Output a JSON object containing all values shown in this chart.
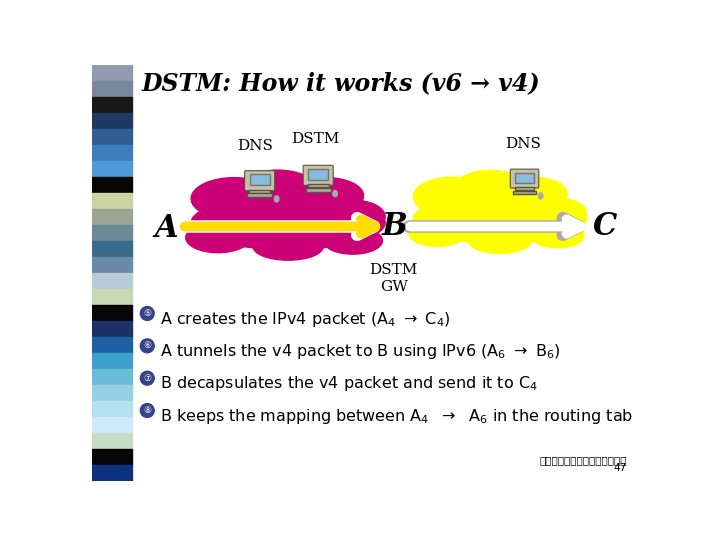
{
  "title": "DSTM: How it works (v6 → v4)",
  "bg_color": "#ffffff",
  "sidebar_colors": [
    "#8a9ab0",
    "#6a7a90",
    "#000000",
    "#1a3560",
    "#2a5a90",
    "#3a7ab8",
    "#4a90d0",
    "#000000",
    "#d0d8a8",
    "#a0b098",
    "#6a8890",
    "#3a6888",
    "#6888a8",
    "#c8d8e8",
    "#d8e0c0",
    "#000000",
    "#1a3060",
    "#2060a0",
    "#40a0d0",
    "#70c0e0",
    "#a0d8e8",
    "#c0e8f8",
    "#d8f0f8",
    "#e8f8ff",
    "#d0e8d0",
    "#000080"
  ],
  "cloud_left_color": "#cc0077",
  "cloud_right_color": "#ffff00",
  "label_A": "A",
  "label_B": "B",
  "label_C": "C",
  "label_DNS_left": "DNS",
  "label_DSTM_top": "DSTM",
  "label_DNS_right": "DNS",
  "label_DSTM_GW": "DSTM\nGW",
  "arrow_left_fill": "#ffdd00",
  "arrow_left_border": "#ffffff",
  "arrow_right_fill": "#ffffff",
  "arrow_right_border": "#dddddd",
  "bullet_bg": "#3355aa",
  "bullet_symbols": [
    "⑤",
    "⑥",
    "⑦",
    "⑧"
  ],
  "bullet_lines": [
    "A creates the IPv4 packet (A",
    "A tunnels the v4 packet to B using IPv6 (A",
    "B decapsulates the v4 packet and send it to C",
    "B keeps the mapping between A"
  ],
  "bullet_suffixes": [
    [
      "4",
      " → C",
      "4",
      ")"
    ],
    [
      "6",
      " → B",
      "6",
      ")"
    ],
    [
      "4",
      ""
    ],
    [
      "4",
      "  →  A",
      "6",
      " in the routing tab"
    ]
  ],
  "footer_line1": "國立清華大學資訊系黃能富教授",
  "footer_line2": "47"
}
